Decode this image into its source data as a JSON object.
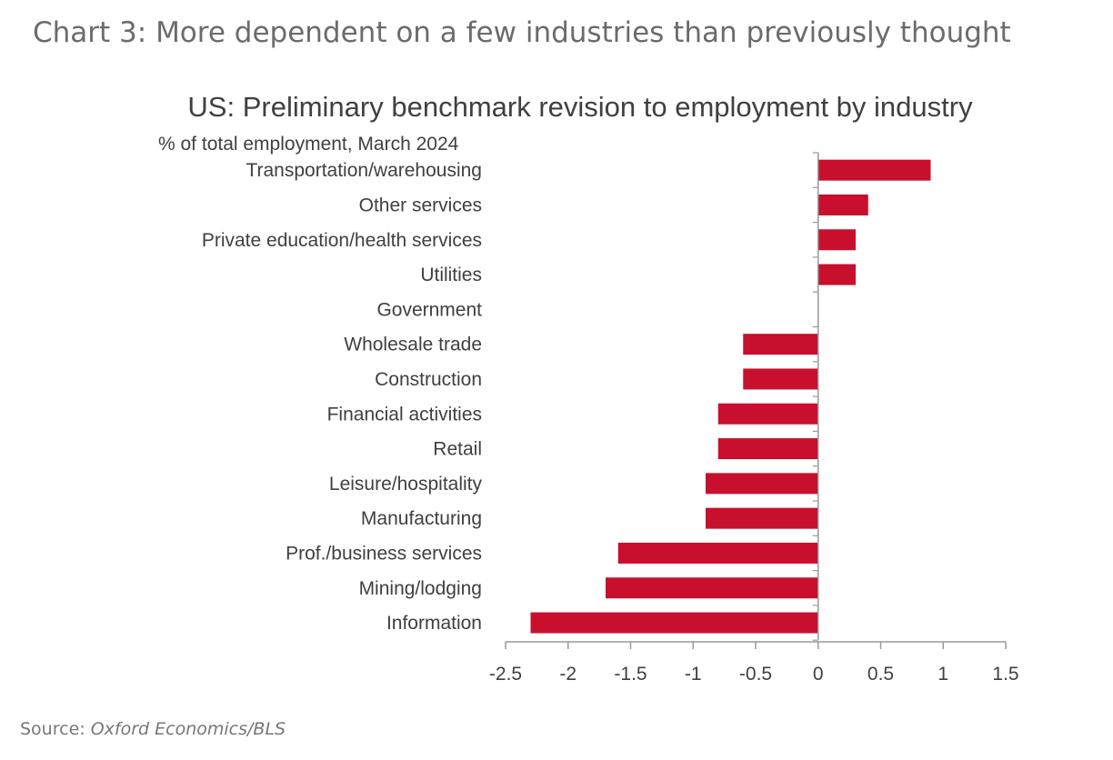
{
  "page": {
    "heading": "Chart 3: More dependent on a few industries than previously thought",
    "source_label": "Source: ",
    "source_value": "Oxford Economics/BLS"
  },
  "colors": {
    "bar": "#c8102e",
    "axis": "#999999",
    "label": "#404040"
  },
  "chart_data": {
    "type": "bar",
    "orientation": "horizontal",
    "title": "US: Preliminary benchmark revision to employment by industry",
    "subtitle": "% of total employment, March 2024",
    "categories": [
      "Transportation/warehousing",
      "Other services",
      "Private education/health services",
      "Utilities",
      "Government",
      "Wholesale trade",
      "Construction",
      "Financial activities",
      "Retail",
      "Leisure/hospitality",
      "Manufacturing",
      "Prof./business services",
      "Mining/lodging",
      "Information"
    ],
    "values": [
      0.9,
      0.4,
      0.3,
      0.3,
      0,
      -0.6,
      -0.6,
      -0.8,
      -0.8,
      -0.9,
      -0.9,
      -1.6,
      -1.7,
      -2.3
    ],
    "xlim": [
      -2.5,
      1.5
    ],
    "xticks": [
      -2.5,
      -2,
      -1.5,
      -1,
      -0.5,
      0,
      0.5,
      1,
      1.5
    ],
    "xtick_labels": [
      "-2.5",
      "-2",
      "-1.5",
      "-1",
      "-0.5",
      "0",
      "0.5",
      "1",
      "1.5"
    ],
    "grid": false,
    "legend": "none"
  }
}
